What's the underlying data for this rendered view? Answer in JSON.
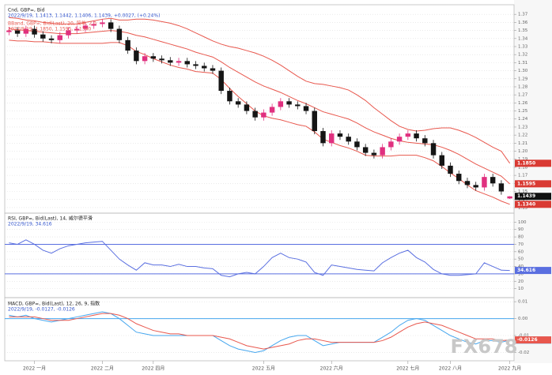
{
  "watermark": "FX678",
  "chart_data": [
    {
      "type": "candlestick",
      "title": "Cnd, GBP=, Bid",
      "subtitle": "2022/9/19, 1.1413, 1.1442, 1.1406, 1.1439, +0.0027, (+0.24%)",
      "categories": [
        null,
        null,
        null,
        "2022 一月",
        null,
        null,
        null,
        null,
        null,
        null,
        null,
        "2022 二月",
        null,
        null,
        null,
        null,
        null,
        "2022 四月",
        null,
        null,
        null,
        null,
        null,
        null,
        null,
        null,
        null,
        null,
        null,
        null,
        "2022 五月",
        null,
        null,
        null,
        null,
        null,
        null,
        null,
        "2022 六月",
        null,
        null,
        null,
        null,
        null,
        null,
        null,
        null,
        "2022 七月",
        null,
        null,
        null,
        null,
        "2022 八月",
        null,
        null,
        null,
        null,
        null,
        null,
        "2022 九月"
      ],
      "open": [
        1.348,
        1.35,
        1.346,
        1.352,
        1.345,
        1.34,
        1.338,
        1.344,
        1.35,
        1.352,
        1.356,
        1.358,
        1.36,
        1.352,
        1.338,
        1.325,
        1.312,
        1.318,
        1.315,
        1.313,
        1.31,
        1.312,
        1.308,
        1.306,
        1.303,
        1.3,
        1.275,
        1.262,
        1.258,
        1.25,
        1.242,
        1.248,
        1.255,
        1.262,
        1.258,
        1.256,
        1.25,
        1.225,
        1.21,
        1.222,
        1.218,
        1.212,
        1.205,
        1.198,
        1.195,
        1.205,
        1.212,
        1.218,
        1.222,
        1.216,
        1.21,
        1.195,
        1.182,
        1.172,
        1.163,
        1.158,
        1.155,
        1.168,
        1.16,
        1.1413
      ],
      "high": [
        1.354,
        1.354,
        1.356,
        1.356,
        1.349,
        1.344,
        1.348,
        1.354,
        1.356,
        1.36,
        1.362,
        1.364,
        1.364,
        1.356,
        1.342,
        1.329,
        1.322,
        1.322,
        1.319,
        1.317,
        1.316,
        1.316,
        1.312,
        1.31,
        1.307,
        1.304,
        1.279,
        1.266,
        1.262,
        1.254,
        1.252,
        1.259,
        1.266,
        1.266,
        1.262,
        1.26,
        1.254,
        1.229,
        1.226,
        1.226,
        1.222,
        1.216,
        1.209,
        1.202,
        1.209,
        1.216,
        1.222,
        1.226,
        1.226,
        1.22,
        1.214,
        1.199,
        1.186,
        1.176,
        1.167,
        1.162,
        1.172,
        1.172,
        1.164,
        1.1442
      ],
      "low": [
        1.344,
        1.342,
        1.342,
        1.341,
        1.336,
        1.334,
        1.334,
        1.34,
        1.346,
        1.348,
        1.352,
        1.354,
        1.348,
        1.334,
        1.321,
        1.308,
        1.308,
        1.311,
        1.309,
        1.306,
        1.306,
        1.304,
        1.302,
        1.299,
        1.296,
        1.271,
        1.258,
        1.254,
        1.246,
        1.238,
        1.238,
        1.244,
        1.251,
        1.254,
        1.252,
        1.246,
        1.221,
        1.206,
        1.206,
        1.214,
        1.208,
        1.201,
        1.194,
        1.191,
        1.191,
        1.201,
        1.208,
        1.214,
        1.212,
        1.206,
        1.191,
        1.178,
        1.168,
        1.159,
        1.154,
        1.151,
        1.151,
        1.156,
        1.146,
        1.1406
      ],
      "close": [
        1.35,
        1.346,
        1.352,
        1.345,
        1.34,
        1.338,
        1.344,
        1.35,
        1.352,
        1.356,
        1.358,
        1.36,
        1.352,
        1.338,
        1.325,
        1.312,
        1.318,
        1.315,
        1.313,
        1.31,
        1.312,
        1.308,
        1.306,
        1.303,
        1.3,
        1.275,
        1.262,
        1.258,
        1.25,
        1.242,
        1.248,
        1.255,
        1.262,
        1.258,
        1.256,
        1.25,
        1.225,
        1.21,
        1.222,
        1.218,
        1.212,
        1.205,
        1.198,
        1.195,
        1.205,
        1.212,
        1.218,
        1.222,
        1.216,
        1.21,
        1.195,
        1.182,
        1.172,
        1.163,
        1.158,
        1.155,
        1.168,
        1.16,
        1.15,
        1.1439
      ],
      "last_label": "1.1439",
      "up_color": "#e0307f",
      "down_color": "#151515",
      "overlay": {
        "name": "BBand, GBP=, Bid(Last), 20, 简单, 2.0",
        "subtitle": "2022/9/19, 1.1850, 1.1595, 1.1340",
        "color": "#e8574d",
        "series": [
          {
            "values": [
              1.366,
              1.365,
              1.363,
              1.362,
              1.36,
              1.359,
              1.358,
              1.358,
              1.358,
              1.36,
              1.362,
              1.364,
              1.365,
              1.363,
              1.363,
              1.364,
              1.364,
              1.363,
              1.361,
              1.359,
              1.356,
              1.352,
              1.347,
              1.342,
              1.337,
              1.333,
              1.33,
              1.328,
              1.325,
              1.322,
              1.318,
              1.313,
              1.307,
              1.3,
              1.293,
              1.287,
              1.284,
              1.283,
              1.281,
              1.279,
              1.276,
              1.27,
              1.263,
              1.254,
              1.246,
              1.238,
              1.231,
              1.227,
              1.225,
              1.226,
              1.228,
              1.229,
              1.229,
              1.226,
              1.222,
              1.217,
              1.211,
              1.205,
              1.2,
              1.185
            ],
            "last_label": "1.1850"
          },
          {
            "values": [
              1.352,
              1.351,
              1.35,
              1.349,
              1.348,
              1.347,
              1.346,
              1.346,
              1.346,
              1.347,
              1.348,
              1.349,
              1.35,
              1.349,
              1.347,
              1.344,
              1.342,
              1.339,
              1.336,
              1.333,
              1.33,
              1.327,
              1.323,
              1.32,
              1.317,
              1.311,
              1.304,
              1.298,
              1.292,
              1.286,
              1.281,
              1.277,
              1.273,
              1.268,
              1.263,
              1.259,
              1.254,
              1.249,
              1.246,
              1.243,
              1.24,
              1.235,
              1.229,
              1.224,
              1.22,
              1.216,
              1.213,
              1.211,
              1.21,
              1.209,
              1.208,
              1.205,
              1.201,
              1.196,
              1.19,
              1.184,
              1.179,
              1.174,
              1.169,
              1.1595
            ],
            "last_label": "1.1595"
          },
          {
            "values": [
              1.338,
              1.337,
              1.337,
              1.336,
              1.336,
              1.335,
              1.334,
              1.334,
              1.334,
              1.334,
              1.334,
              1.334,
              1.335,
              1.335,
              1.331,
              1.324,
              1.32,
              1.315,
              1.311,
              1.307,
              1.304,
              1.302,
              1.299,
              1.298,
              1.297,
              1.289,
              1.278,
              1.268,
              1.259,
              1.25,
              1.244,
              1.241,
              1.239,
              1.236,
              1.233,
              1.231,
              1.224,
              1.215,
              1.211,
              1.207,
              1.204,
              1.2,
              1.195,
              1.194,
              1.194,
              1.194,
              1.195,
              1.195,
              1.195,
              1.192,
              1.188,
              1.181,
              1.173,
              1.166,
              1.158,
              1.151,
              1.147,
              1.143,
              1.138,
              1.134
            ],
            "last_label": "1.1340"
          }
        ]
      },
      "ylim": [
        1.125,
        1.38
      ],
      "yticks": [
        1.13,
        1.14,
        1.15,
        1.16,
        1.17,
        1.18,
        1.19,
        {
          "value": 1.2,
          "label": "1.20"
        },
        1.21,
        1.22,
        1.23,
        1.24,
        1.25,
        1.26,
        1.27,
        1.28,
        1.29,
        {
          "value": 1.3,
          "label": "1.30"
        },
        1.31,
        1.32,
        1.33,
        1.34,
        1.35,
        1.36,
        1.37
      ],
      "grid": true
    },
    {
      "type": "line",
      "title": "RSI, GBP=, Bid(Last), 14, 威尔德平滑",
      "subtitle": "2022/9/19, 34.616",
      "series": [
        {
          "color": "#5a6fe0",
          "values": [
            72,
            70,
            76,
            70,
            62,
            58,
            64,
            68,
            70,
            72,
            73,
            74,
            62,
            50,
            42,
            35,
            45,
            42,
            42,
            40,
            43,
            40,
            40,
            38,
            37,
            28,
            26,
            30,
            32,
            30,
            40,
            52,
            58,
            52,
            50,
            46,
            32,
            28,
            42,
            40,
            38,
            36,
            35,
            34,
            45,
            52,
            58,
            62,
            52,
            46,
            36,
            30,
            28,
            28,
            29,
            30,
            45,
            40,
            35,
            34.616
          ],
          "last_label": "34.616"
        }
      ],
      "reference_lines": [
        30,
        70
      ],
      "reference_color": "#5a6fe0",
      "ylim": [
        0,
        110
      ],
      "yticks": [
        10,
        20,
        30,
        40,
        50,
        60,
        70,
        80,
        90,
        100
      ],
      "grid": true
    },
    {
      "type": "line",
      "title": "MACD, GBP=, Bid(Last), 12, 26, 9, 指数",
      "subtitle": "2022/9/19, -0.0127, -0.0126",
      "series": [
        {
          "color": "#45a6ee",
          "values": [
            0.002,
            0.001,
            0.002,
            0.0,
            -0.001,
            -0.002,
            -0.001,
            0.0,
            0.001,
            0.002,
            0.003,
            0.004,
            0.003,
            0.0,
            -0.004,
            -0.008,
            -0.009,
            -0.01,
            -0.01,
            -0.01,
            -0.01,
            -0.01,
            -0.01,
            -0.01,
            -0.01,
            -0.013,
            -0.016,
            -0.018,
            -0.019,
            -0.02,
            -0.019,
            -0.016,
            -0.013,
            -0.011,
            -0.01,
            -0.01,
            -0.013,
            -0.016,
            -0.015,
            -0.014,
            -0.014,
            -0.014,
            -0.014,
            -0.014,
            -0.011,
            -0.008,
            -0.004,
            -0.001,
            0.0,
            -0.001,
            -0.004,
            -0.007,
            -0.01,
            -0.012,
            -0.014,
            -0.015,
            -0.013,
            -0.013,
            -0.014,
            -0.0127
          ],
          "last_label": "-0.0127"
        },
        {
          "color": "#e8574d",
          "values": [
            0.001,
            0.001,
            0.001,
            0.001,
            0.0,
            -0.001,
            -0.001,
            -0.001,
            0.0,
            0.001,
            0.002,
            0.003,
            0.003,
            0.002,
            0.0,
            -0.003,
            -0.005,
            -0.007,
            -0.008,
            -0.009,
            -0.009,
            -0.01,
            -0.01,
            -0.01,
            -0.01,
            -0.011,
            -0.012,
            -0.014,
            -0.016,
            -0.017,
            -0.018,
            -0.017,
            -0.016,
            -0.015,
            -0.013,
            -0.012,
            -0.012,
            -0.013,
            -0.014,
            -0.014,
            -0.014,
            -0.014,
            -0.014,
            -0.014,
            -0.013,
            -0.011,
            -0.008,
            -0.005,
            -0.003,
            -0.002,
            -0.003,
            -0.004,
            -0.006,
            -0.008,
            -0.01,
            -0.012,
            -0.012,
            -0.012,
            -0.013,
            -0.0126
          ],
          "last_label": "-0.0126"
        }
      ],
      "reference_lines": [
        0
      ],
      "reference_color": "#45a6ee",
      "ylim": [
        -0.024,
        0.011
      ],
      "yticks": [
        -0.02,
        -0.01,
        {
          "value": 0,
          "label": "0.00"
        },
        0.01
      ],
      "grid": true
    }
  ]
}
